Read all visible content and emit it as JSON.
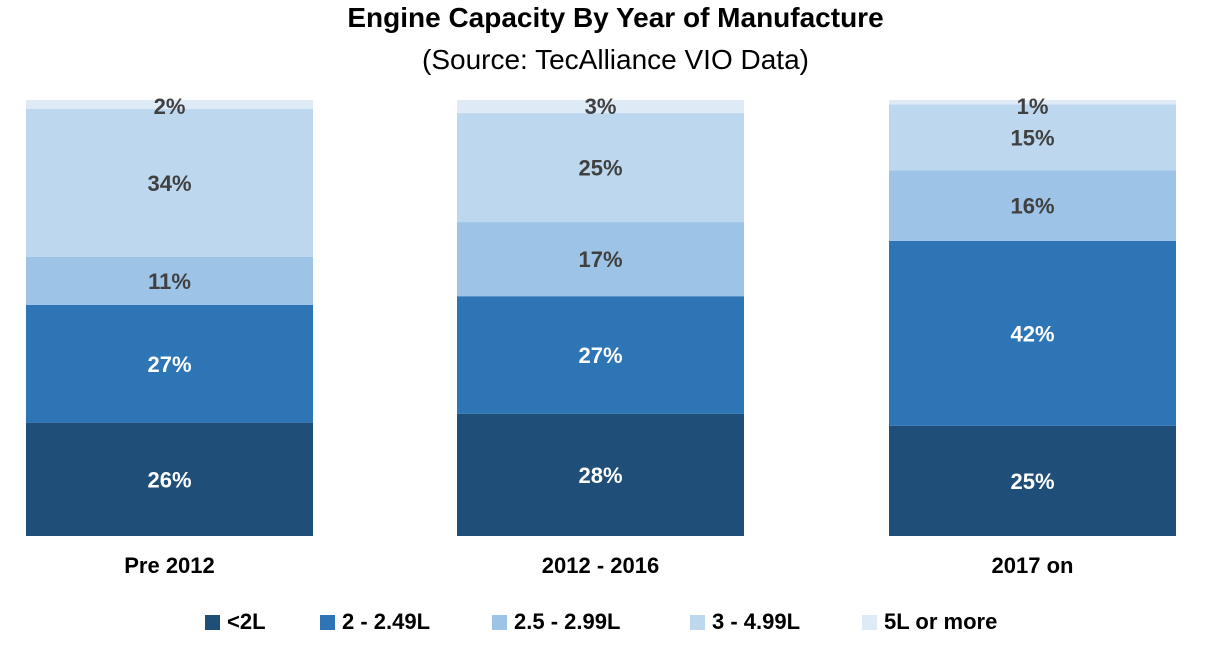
{
  "chart_data": {
    "type": "bar",
    "stacked": true,
    "percent": true,
    "title": "Engine Capacity By Year of Manufacture",
    "subtitle": "(Source: TecAlliance VIO Data)",
    "categories": [
      "Pre 2012",
      "2012 - 2016",
      "2017 on"
    ],
    "series": [
      {
        "name": "<2L",
        "color": "#1f4e79",
        "label_color": "#ffffff",
        "values": [
          26,
          28,
          25
        ]
      },
      {
        "name": "2 - 2.49L",
        "color": "#2e75b6",
        "label_color": "#ffffff",
        "values": [
          27,
          27,
          42
        ]
      },
      {
        "name": "2.5 - 2.99L",
        "color": "#9dc3e6",
        "label_color": "#404040",
        "values": [
          11,
          17,
          16
        ]
      },
      {
        "name": "3 - 4.99L",
        "color": "#bdd7ee",
        "label_color": "#404040",
        "values": [
          34,
          25,
          15
        ]
      },
      {
        "name": "5L or more",
        "color": "#deebf7",
        "label_color": "#404040",
        "values": [
          2,
          3,
          1
        ]
      }
    ],
    "legend_position": "bottom",
    "grid": false,
    "axes_visible": false
  }
}
